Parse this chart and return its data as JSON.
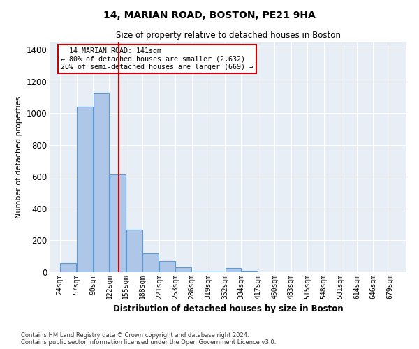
{
  "title1": "14, MARIAN ROAD, BOSTON, PE21 9HA",
  "title2": "Size of property relative to detached houses in Boston",
  "xlabel": "Distribution of detached houses by size in Boston",
  "ylabel": "Number of detached properties",
  "footnote1": "Contains HM Land Registry data © Crown copyright and database right 2024.",
  "footnote2": "Contains public sector information licensed under the Open Government Licence v3.0.",
  "annotation_line1": "  14 MARIAN ROAD: 141sqm",
  "annotation_line2": "← 80% of detached houses are smaller (2,632)",
  "annotation_line3": "20% of semi-detached houses are larger (669) →",
  "property_size": 141,
  "bar_left_edges": [
    24,
    57,
    90,
    122,
    155,
    188,
    221,
    253,
    286,
    319,
    352,
    384,
    417,
    450,
    483,
    515,
    548,
    581,
    614,
    646
  ],
  "bar_widths": [
    33,
    33,
    32,
    33,
    33,
    33,
    32,
    33,
    33,
    33,
    32,
    33,
    33,
    33,
    32,
    33,
    33,
    33,
    32,
    33
  ],
  "bar_heights": [
    55,
    1040,
    1130,
    615,
    270,
    120,
    70,
    30,
    5,
    5,
    28,
    10,
    0,
    0,
    0,
    0,
    0,
    0,
    0,
    0
  ],
  "bar_color": "#aec6e8",
  "bar_edge_color": "#5b9bd5",
  "vline_color": "#cc0000",
  "vline_x": 141,
  "annotation_box_color": "#cc0000",
  "background_color": "#e8eef5",
  "ylim": [
    0,
    1450
  ],
  "xlim": [
    5,
    712
  ],
  "xtick_labels": [
    "24sqm",
    "57sqm",
    "90sqm",
    "122sqm",
    "155sqm",
    "188sqm",
    "221sqm",
    "253sqm",
    "286sqm",
    "319sqm",
    "352sqm",
    "384sqm",
    "417sqm",
    "450sqm",
    "483sqm",
    "515sqm",
    "548sqm",
    "581sqm",
    "614sqm",
    "646sqm",
    "679sqm"
  ],
  "xtick_positions": [
    24,
    57,
    90,
    122,
    155,
    188,
    221,
    253,
    286,
    319,
    352,
    384,
    417,
    450,
    483,
    515,
    548,
    581,
    614,
    646,
    679
  ]
}
